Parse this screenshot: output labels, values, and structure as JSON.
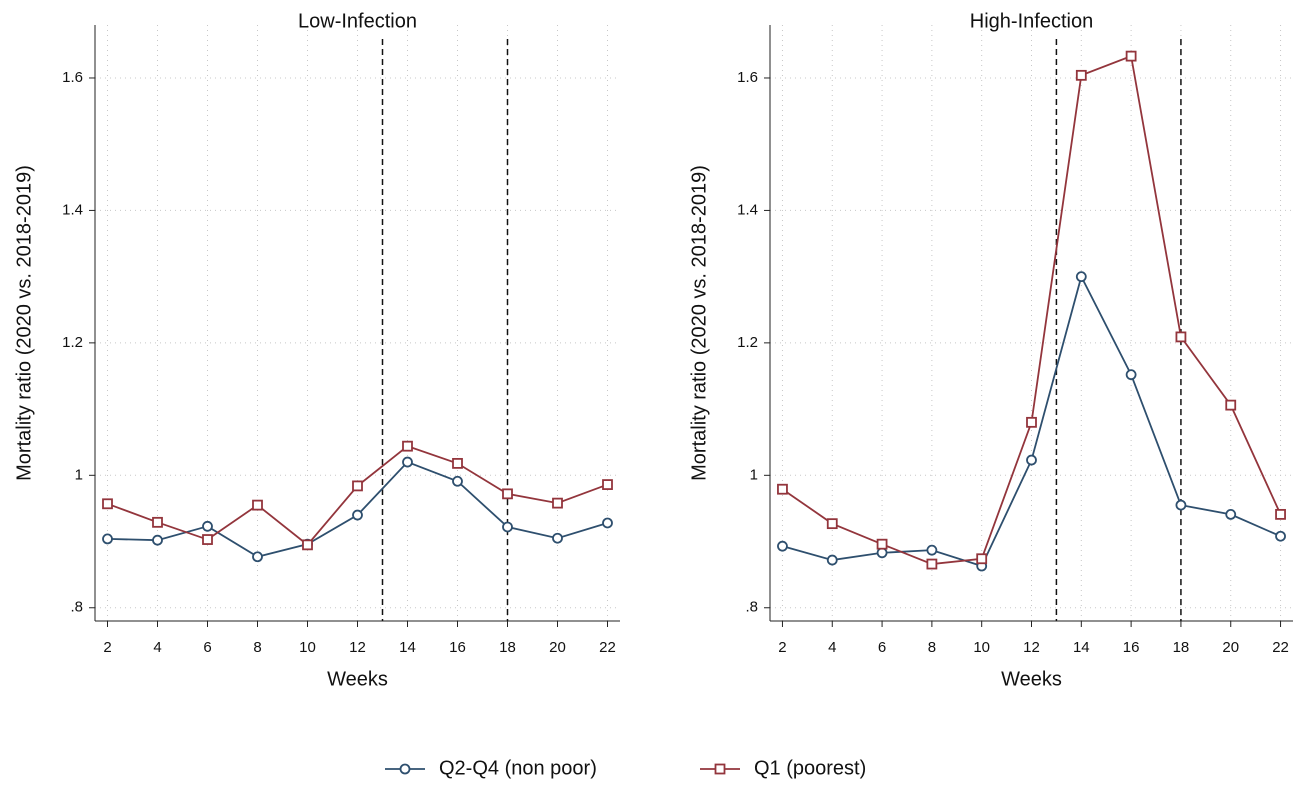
{
  "chart_data": [
    {
      "type": "line",
      "title": "Low-Infection",
      "x_label": "Weeks",
      "y_label": "Mortality ratio (2020 vs. 2018-2019)",
      "x": [
        2,
        4,
        6,
        8,
        10,
        12,
        14,
        16,
        18,
        20,
        22
      ],
      "series": [
        {
          "name": "Q2-Q4 (non poor)",
          "color": "#2e4f6e",
          "marker": "circle",
          "values": [
            0.904,
            0.902,
            0.923,
            0.877,
            0.896,
            0.94,
            1.02,
            0.991,
            0.922,
            0.905,
            0.928
          ]
        },
        {
          "name": "Q1 (poorest)",
          "color": "#93353c",
          "marker": "square",
          "values": [
            0.957,
            0.929,
            0.903,
            0.955,
            0.895,
            0.984,
            1.044,
            1.018,
            0.972,
            0.958,
            0.986
          ]
        }
      ],
      "xlim": [
        1.5,
        22.5
      ],
      "xticks": [
        2,
        4,
        6,
        8,
        10,
        12,
        14,
        16,
        18,
        20,
        22
      ],
      "ylim": [
        0.78,
        1.68
      ],
      "yticks": [
        {
          "value": 0.8,
          "label": ".8"
        },
        1,
        1.2,
        1.4,
        1.6
      ],
      "vlines": [
        13,
        18
      ],
      "grid": true
    },
    {
      "type": "line",
      "title": "High-Infection",
      "x_label": "Weeks",
      "y_label": "Mortality ratio (2020 vs. 2018-2019)",
      "x": [
        2,
        4,
        6,
        8,
        10,
        12,
        14,
        16,
        18,
        20,
        22
      ],
      "series": [
        {
          "color": "#2e4f6e",
          "marker": "circle",
          "values": [
            0.893,
            0.872,
            0.883,
            0.887,
            0.863,
            1.023,
            1.3,
            1.152,
            0.955,
            0.941,
            0.908
          ]
        },
        {
          "color": "#93353c",
          "marker": "square",
          "values": [
            0.979,
            0.927,
            0.896,
            0.866,
            0.874,
            1.08,
            1.604,
            1.633,
            1.209,
            1.106,
            0.941
          ]
        }
      ],
      "xlim": [
        1.5,
        22.5
      ],
      "xticks": [
        2,
        4,
        6,
        8,
        10,
        12,
        14,
        16,
        18,
        20,
        22
      ],
      "ylim": [
        0.78,
        1.68
      ],
      "yticks": [
        {
          "value": 0.8,
          "label": ".8"
        },
        1,
        1.2,
        1.4,
        1.6
      ],
      "vlines": [
        13,
        18
      ],
      "grid": true
    }
  ]
}
